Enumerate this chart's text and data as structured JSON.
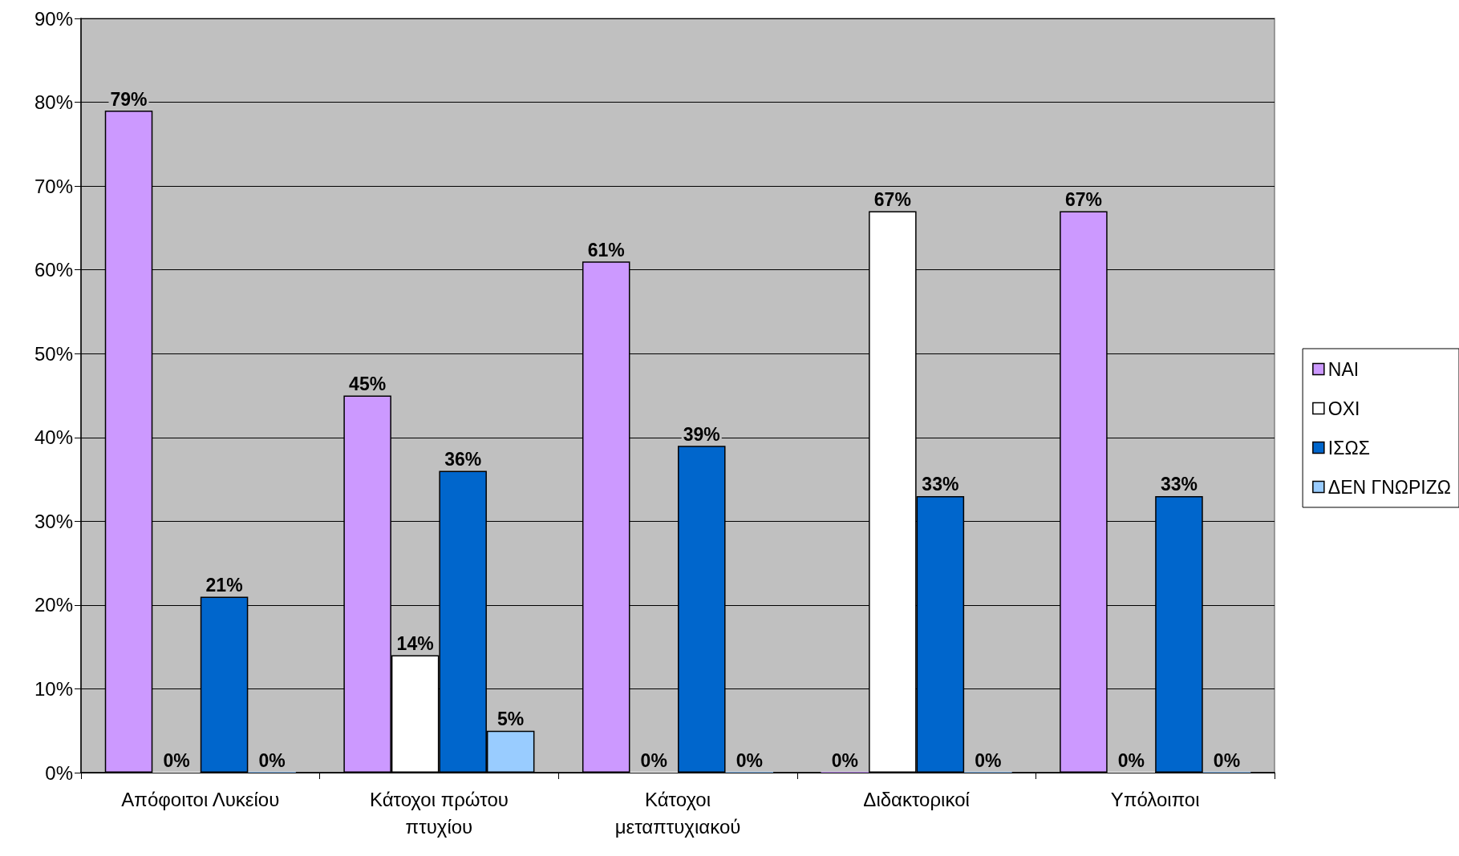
{
  "chart_data": {
    "type": "bar",
    "categories": [
      "Απόφοιτοι Λυκείου",
      "Κάτοχοι πρώτου πτυχίου",
      "Κάτοχοι μεταπτυχιακού",
      "Διδακτορικοί",
      "Υπόλοιποι"
    ],
    "series": [
      {
        "name": "ΝΑΙ",
        "color": "#cc99ff",
        "values": [
          79,
          45,
          61,
          0,
          67
        ],
        "value_labels": [
          "79%",
          "45%",
          "61%",
          "0%",
          "67%"
        ]
      },
      {
        "name": "ΟΧΙ",
        "color": "#ffffff",
        "values": [
          0,
          14,
          0,
          67,
          0
        ],
        "value_labels": [
          "0%",
          "14%",
          "0%",
          "67%",
          "0%"
        ]
      },
      {
        "name": "ΙΣΩΣ",
        "color": "#0066cc",
        "values": [
          21,
          36,
          39,
          33,
          33
        ],
        "value_labels": [
          "21%",
          "36%",
          "39%",
          "33%",
          "33%"
        ]
      },
      {
        "name": "ΔΕΝ ΓΝΩΡΙΖΩ",
        "color": "#99ccff",
        "values": [
          0,
          5,
          0,
          0,
          0
        ],
        "value_labels": [
          "0%",
          "5%",
          "0%",
          "0%",
          "0%"
        ]
      }
    ],
    "ylim": [
      0,
      90
    ],
    "yticks": [
      {
        "value": 0,
        "label": "0%"
      },
      {
        "value": 10,
        "label": "10%"
      },
      {
        "value": 20,
        "label": "20%"
      },
      {
        "value": 30,
        "label": "30%"
      },
      {
        "value": 40,
        "label": "40%"
      },
      {
        "value": 50,
        "label": "50%"
      },
      {
        "value": 60,
        "label": "60%"
      },
      {
        "value": 70,
        "label": "70%"
      },
      {
        "value": 80,
        "label": "80%"
      },
      {
        "value": 90,
        "label": "90%"
      }
    ],
    "grid": "y",
    "legend": "right"
  }
}
